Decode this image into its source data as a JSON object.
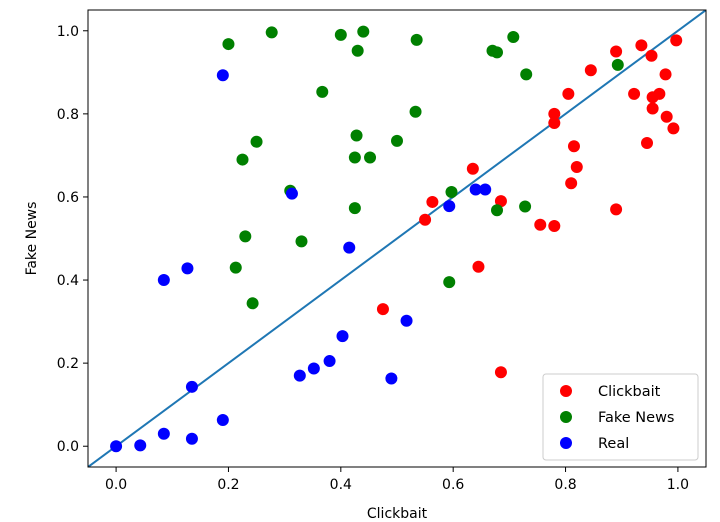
{
  "chart_data": {
    "type": "scatter",
    "xlabel": "Clickbait",
    "ylabel": "Fake News",
    "xlim": [
      -0.05,
      1.05
    ],
    "ylim": [
      -0.05,
      1.05
    ],
    "xticks": [
      0.0,
      0.2,
      0.4,
      0.6,
      0.8,
      1.0
    ],
    "xtick_labels": [
      "0.0",
      "0.2",
      "0.4",
      "0.6",
      "0.8",
      "1.0"
    ],
    "yticks": [
      0.0,
      0.2,
      0.4,
      0.6,
      0.8,
      1.0
    ],
    "ytick_labels": [
      "0.0",
      "0.2",
      "0.4",
      "0.6",
      "0.8",
      "1.0"
    ],
    "grid": false,
    "legend_position": "bottom-right",
    "reference_line": {
      "x": [
        -0.05,
        1.05
      ],
      "y": [
        -0.05,
        1.05
      ],
      "color": "#1f77b4"
    },
    "series": [
      {
        "name": "Clickbait",
        "color": "#ff0000",
        "points": [
          [
            0.475,
            0.33
          ],
          [
            0.55,
            0.545
          ],
          [
            0.563,
            0.588
          ],
          [
            0.635,
            0.668
          ],
          [
            0.645,
            0.432
          ],
          [
            0.685,
            0.178
          ],
          [
            0.685,
            0.59
          ],
          [
            0.755,
            0.533
          ],
          [
            0.78,
            0.53
          ],
          [
            0.78,
            0.778
          ],
          [
            0.78,
            0.8
          ],
          [
            0.805,
            0.848
          ],
          [
            0.81,
            0.633
          ],
          [
            0.815,
            0.722
          ],
          [
            0.82,
            0.672
          ],
          [
            0.845,
            0.905
          ],
          [
            0.89,
            0.57
          ],
          [
            0.89,
            0.95
          ],
          [
            0.922,
            0.848
          ],
          [
            0.935,
            0.965
          ],
          [
            0.945,
            0.73
          ],
          [
            0.953,
            0.94
          ],
          [
            0.955,
            0.84
          ],
          [
            0.955,
            0.813
          ],
          [
            0.967,
            0.848
          ],
          [
            0.978,
            0.895
          ],
          [
            0.98,
            0.793
          ],
          [
            0.992,
            0.765
          ],
          [
            0.997,
            0.977
          ]
        ]
      },
      {
        "name": "Fake News",
        "color": "#008000",
        "points": [
          [
            0.2,
            0.968
          ],
          [
            0.213,
            0.43
          ],
          [
            0.225,
            0.69
          ],
          [
            0.23,
            0.505
          ],
          [
            0.243,
            0.344
          ],
          [
            0.25,
            0.733
          ],
          [
            0.277,
            0.996
          ],
          [
            0.31,
            0.615
          ],
          [
            0.33,
            0.493
          ],
          [
            0.367,
            0.853
          ],
          [
            0.4,
            0.99
          ],
          [
            0.425,
            0.573
          ],
          [
            0.425,
            0.695
          ],
          [
            0.428,
            0.748
          ],
          [
            0.43,
            0.952
          ],
          [
            0.44,
            0.998
          ],
          [
            0.452,
            0.695
          ],
          [
            0.5,
            0.735
          ],
          [
            0.533,
            0.805
          ],
          [
            0.535,
            0.978
          ],
          [
            0.593,
            0.395
          ],
          [
            0.597,
            0.612
          ],
          [
            0.67,
            0.952
          ],
          [
            0.678,
            0.948
          ],
          [
            0.678,
            0.568
          ],
          [
            0.707,
            0.985
          ],
          [
            0.728,
            0.577
          ],
          [
            0.73,
            0.895
          ],
          [
            0.893,
            0.918
          ]
        ]
      },
      {
        "name": "Real",
        "color": "#0000ff",
        "points": [
          [
            0.0,
            0.0
          ],
          [
            0.043,
            0.002
          ],
          [
            0.085,
            0.03
          ],
          [
            0.085,
            0.4
          ],
          [
            0.127,
            0.428
          ],
          [
            0.135,
            0.018
          ],
          [
            0.135,
            0.143
          ],
          [
            0.19,
            0.063
          ],
          [
            0.19,
            0.893
          ],
          [
            0.313,
            0.608
          ],
          [
            0.327,
            0.17
          ],
          [
            0.352,
            0.187
          ],
          [
            0.38,
            0.205
          ],
          [
            0.403,
            0.265
          ],
          [
            0.415,
            0.478
          ],
          [
            0.49,
            0.163
          ],
          [
            0.517,
            0.302
          ],
          [
            0.593,
            0.578
          ],
          [
            0.64,
            0.618
          ],
          [
            0.657,
            0.618
          ]
        ]
      }
    ]
  }
}
